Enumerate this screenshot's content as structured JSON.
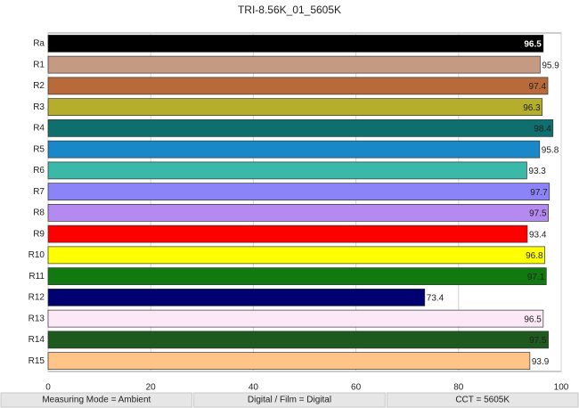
{
  "chart_data": {
    "type": "bar",
    "orientation": "horizontal",
    "title": "TRI-8.56K_01_5605K",
    "categories": [
      "Ra",
      "R1",
      "R2",
      "R3",
      "R4",
      "R5",
      "R6",
      "R7",
      "R8",
      "R9",
      "R10",
      "R11",
      "R12",
      "R13",
      "R14",
      "R15"
    ],
    "values": [
      96.5,
      95.9,
      97.4,
      96.3,
      98.4,
      95.8,
      93.3,
      97.7,
      97.5,
      93.4,
      96.8,
      97.1,
      73.4,
      96.5,
      97.5,
      93.9
    ],
    "colors": [
      "#000000",
      "#c49a82",
      "#b86a3a",
      "#b5ad2c",
      "#0f6e6e",
      "#1a88c8",
      "#3ab8a8",
      "#8a84f8",
      "#b48af0",
      "#ff0000",
      "#ffff00",
      "#107a10",
      "#000070",
      "#fde8f8",
      "#1e5a1e",
      "#ffc488"
    ],
    "xlim": [
      0,
      100
    ],
    "xticks": [
      0,
      20,
      40,
      60,
      80,
      100
    ],
    "grid": true
  },
  "footer": [
    "Measuring Mode = Ambient",
    "Digital / Film = Digital",
    "CCT = 5605K"
  ]
}
